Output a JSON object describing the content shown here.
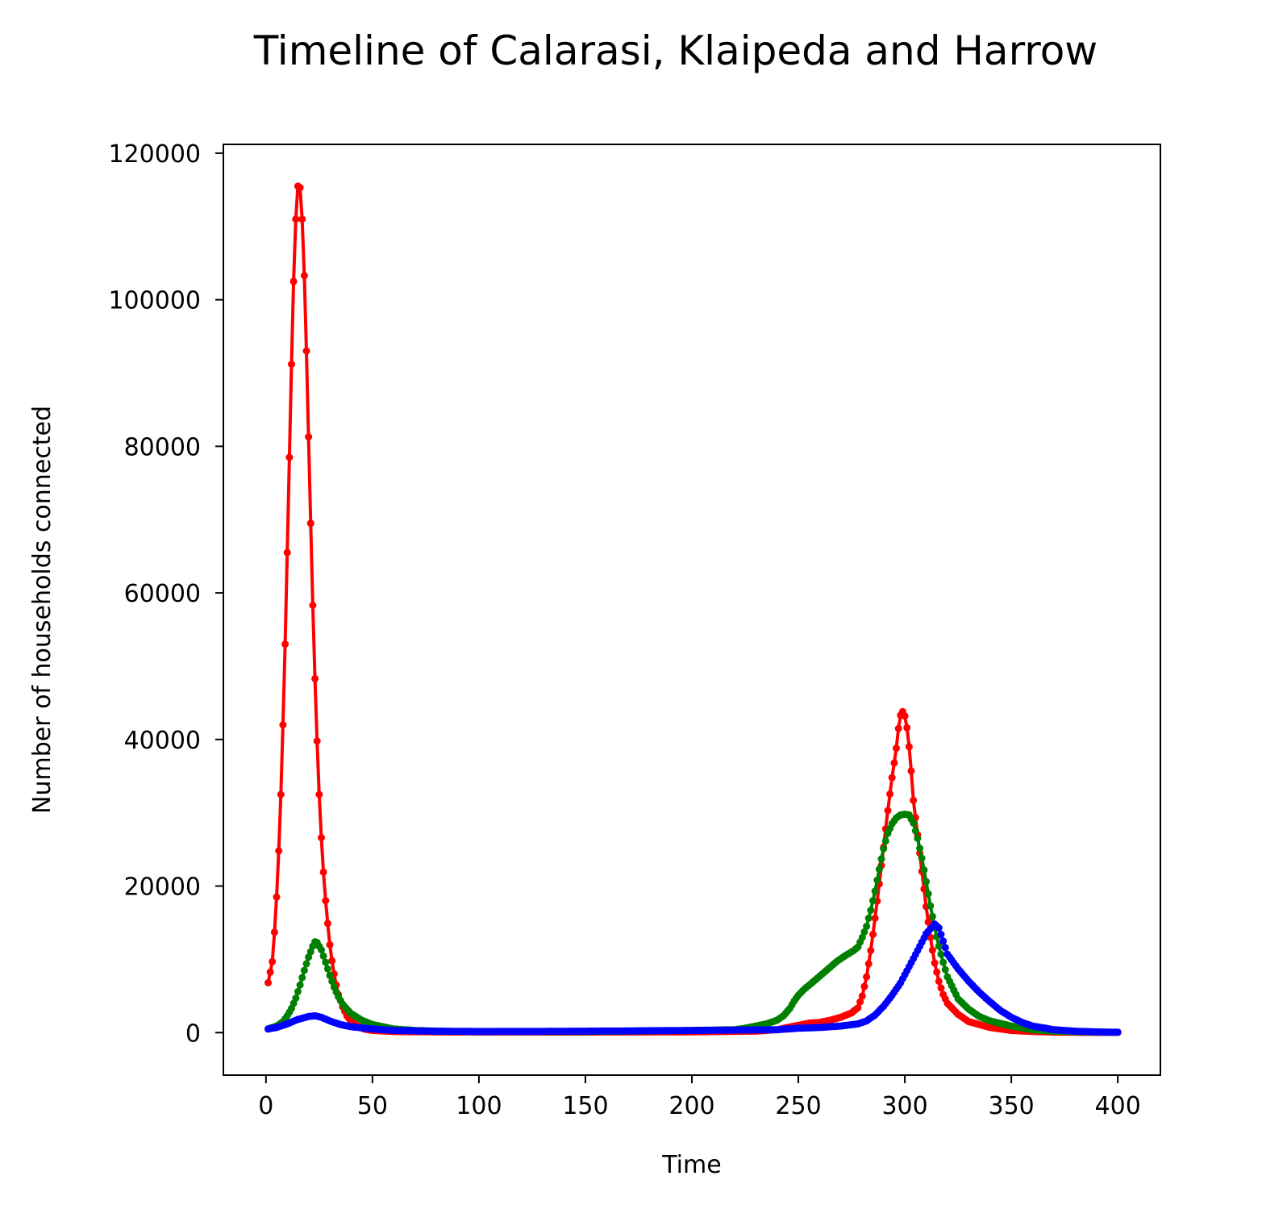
{
  "chart_data": {
    "type": "line",
    "title": "Timeline of Calarasi, Klaipeda and Harrow",
    "xlabel": "Time",
    "ylabel": "Number of households connected",
    "xlim": [
      -20,
      420
    ],
    "ylim": [
      -5800,
      121200
    ],
    "xticks": [
      0,
      50,
      100,
      150,
      200,
      250,
      300,
      350,
      400
    ],
    "yticks": [
      0,
      20000,
      40000,
      60000,
      80000,
      100000,
      120000
    ],
    "xtick_labels": [
      "0",
      "50",
      "100",
      "150",
      "200",
      "250",
      "300",
      "350",
      "400"
    ],
    "ytick_labels": [
      "0",
      "20000",
      "40000",
      "60000",
      "80000",
      "100000",
      "120000"
    ],
    "grid": false,
    "legend": "none",
    "series": [
      {
        "color": "#ff0000",
        "points": [
          [
            1,
            6800
          ],
          [
            3,
            9700
          ],
          [
            4,
            13700
          ],
          [
            5,
            18500
          ],
          [
            6,
            24800
          ],
          [
            7,
            32500
          ],
          [
            8,
            42000
          ],
          [
            9,
            53000
          ],
          [
            10,
            65500
          ],
          [
            11,
            78500
          ],
          [
            12,
            91200
          ],
          [
            13,
            102500
          ],
          [
            14,
            111000
          ],
          [
            15,
            115500
          ],
          [
            16,
            115300
          ],
          [
            17,
            111000
          ],
          [
            18,
            103300
          ],
          [
            19,
            93000
          ],
          [
            20,
            81300
          ],
          [
            21,
            69500
          ],
          [
            22,
            58300
          ],
          [
            23,
            48300
          ],
          [
            24,
            39800
          ],
          [
            25,
            32500
          ],
          [
            26,
            26600
          ],
          [
            27,
            21900
          ],
          [
            28,
            18000
          ],
          [
            29,
            14900
          ],
          [
            30,
            12000
          ],
          [
            31,
            9800
          ],
          [
            32,
            8000
          ],
          [
            33,
            6500
          ],
          [
            34,
            5200
          ],
          [
            36,
            3500
          ],
          [
            38,
            2300
          ],
          [
            40,
            1500
          ],
          [
            43,
            900
          ],
          [
            46,
            500
          ],
          [
            50,
            300
          ],
          [
            60,
            150
          ],
          [
            80,
            100
          ],
          [
            100,
            80
          ],
          [
            150,
            80
          ],
          [
            200,
            100
          ],
          [
            230,
            200
          ],
          [
            240,
            400
          ],
          [
            245,
            700
          ],
          [
            250,
            1000
          ],
          [
            255,
            1300
          ],
          [
            260,
            1400
          ],
          [
            265,
            1700
          ],
          [
            270,
            2100
          ],
          [
            275,
            2700
          ],
          [
            278,
            3400
          ],
          [
            280,
            5000
          ],
          [
            282,
            7600
          ],
          [
            284,
            11200
          ],
          [
            286,
            15600
          ],
          [
            288,
            20300
          ],
          [
            290,
            25300
          ],
          [
            292,
            30300
          ],
          [
            294,
            34800
          ],
          [
            296,
            38800
          ],
          [
            297,
            41500
          ],
          [
            298,
            43300
          ],
          [
            299,
            43800
          ],
          [
            300,
            43200
          ],
          [
            301,
            41600
          ],
          [
            302,
            39000
          ],
          [
            303,
            35700
          ],
          [
            304,
            31700
          ],
          [
            306,
            27000
          ],
          [
            308,
            22000
          ],
          [
            310,
            17200
          ],
          [
            312,
            13000
          ],
          [
            314,
            9500
          ],
          [
            316,
            7000
          ],
          [
            318,
            5200
          ],
          [
            320,
            4000
          ],
          [
            325,
            2500
          ],
          [
            330,
            1500
          ],
          [
            340,
            700
          ],
          [
            350,
            300
          ],
          [
            360,
            150
          ],
          [
            370,
            70
          ],
          [
            385,
            40
          ],
          [
            400,
            30
          ]
        ]
      },
      {
        "color": "#008000",
        "points": [
          [
            1,
            500
          ],
          [
            5,
            900
          ],
          [
            8,
            1500
          ],
          [
            10,
            2300
          ],
          [
            12,
            3300
          ],
          [
            14,
            4700
          ],
          [
            16,
            6500
          ],
          [
            18,
            8500
          ],
          [
            20,
            10300
          ],
          [
            22,
            11800
          ],
          [
            23,
            12400
          ],
          [
            24,
            12300
          ],
          [
            26,
            11300
          ],
          [
            28,
            9600
          ],
          [
            30,
            7800
          ],
          [
            32,
            6200
          ],
          [
            34,
            4900
          ],
          [
            36,
            3900
          ],
          [
            38,
            3200
          ],
          [
            40,
            2600
          ],
          [
            45,
            1700
          ],
          [
            50,
            1100
          ],
          [
            55,
            800
          ],
          [
            60,
            500
          ],
          [
            70,
            300
          ],
          [
            80,
            200
          ],
          [
            100,
            150
          ],
          [
            150,
            150
          ],
          [
            200,
            300
          ],
          [
            220,
            400
          ],
          [
            225,
            600
          ],
          [
            230,
            900
          ],
          [
            235,
            1200
          ],
          [
            240,
            1700
          ],
          [
            243,
            2300
          ],
          [
            246,
            3300
          ],
          [
            248,
            4300
          ],
          [
            250,
            5100
          ],
          [
            253,
            6000
          ],
          [
            256,
            6700
          ],
          [
            260,
            7700
          ],
          [
            264,
            8700
          ],
          [
            268,
            9700
          ],
          [
            272,
            10500
          ],
          [
            276,
            11200
          ],
          [
            278,
            11700
          ],
          [
            280,
            13000
          ],
          [
            282,
            14500
          ],
          [
            284,
            16700
          ],
          [
            286,
            19300
          ],
          [
            288,
            22300
          ],
          [
            290,
            25100
          ],
          [
            292,
            27200
          ],
          [
            294,
            28500
          ],
          [
            296,
            29300
          ],
          [
            298,
            29700
          ],
          [
            300,
            29800
          ],
          [
            302,
            29700
          ],
          [
            304,
            28600
          ],
          [
            306,
            26500
          ],
          [
            308,
            23800
          ],
          [
            310,
            20600
          ],
          [
            312,
            17300
          ],
          [
            314,
            14400
          ],
          [
            316,
            11800
          ],
          [
            318,
            9600
          ],
          [
            320,
            7600
          ],
          [
            325,
            4600
          ],
          [
            330,
            3200
          ],
          [
            335,
            2200
          ],
          [
            340,
            1600
          ],
          [
            350,
            900
          ],
          [
            360,
            400
          ],
          [
            370,
            200
          ],
          [
            385,
            100
          ],
          [
            400,
            50
          ]
        ]
      },
      {
        "color": "#0000ff",
        "points": [
          [
            1,
            500
          ],
          [
            5,
            700
          ],
          [
            10,
            1200
          ],
          [
            15,
            1800
          ],
          [
            20,
            2200
          ],
          [
            23,
            2300
          ],
          [
            26,
            2100
          ],
          [
            30,
            1600
          ],
          [
            35,
            1100
          ],
          [
            40,
            800
          ],
          [
            50,
            500
          ],
          [
            60,
            300
          ],
          [
            80,
            200
          ],
          [
            100,
            150
          ],
          [
            150,
            200
          ],
          [
            200,
            300
          ],
          [
            240,
            400
          ],
          [
            250,
            600
          ],
          [
            260,
            700
          ],
          [
            270,
            900
          ],
          [
            278,
            1200
          ],
          [
            282,
            1600
          ],
          [
            286,
            2400
          ],
          [
            290,
            3600
          ],
          [
            294,
            5100
          ],
          [
            298,
            6800
          ],
          [
            302,
            9000
          ],
          [
            306,
            11200
          ],
          [
            310,
            13500
          ],
          [
            314,
            14800
          ],
          [
            316,
            14300
          ],
          [
            318,
            12500
          ],
          [
            320,
            10700
          ],
          [
            325,
            8700
          ],
          [
            330,
            7000
          ],
          [
            335,
            5500
          ],
          [
            340,
            4200
          ],
          [
            345,
            3000
          ],
          [
            350,
            2100
          ],
          [
            355,
            1400
          ],
          [
            360,
            900
          ],
          [
            370,
            400
          ],
          [
            380,
            200
          ],
          [
            390,
            100
          ],
          [
            400,
            50
          ]
        ]
      }
    ]
  }
}
